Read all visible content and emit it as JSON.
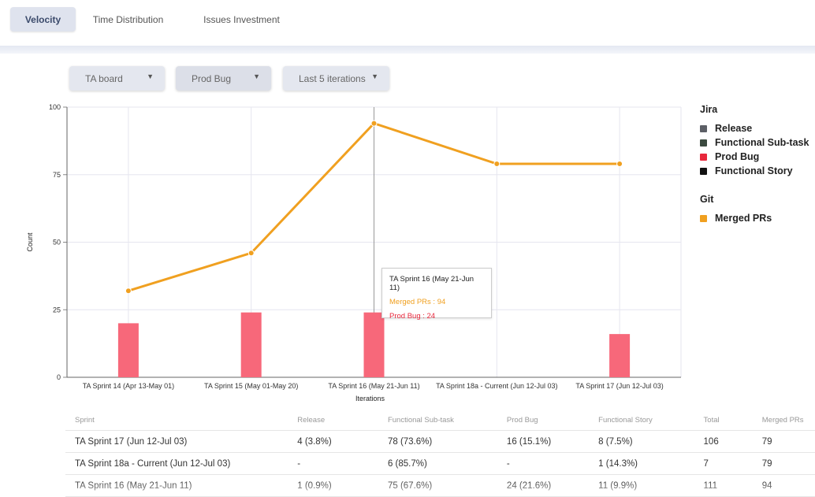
{
  "tabs": [
    {
      "label": "Velocity",
      "active": true
    },
    {
      "label": "Time Distribution",
      "active": false
    },
    {
      "label": "Issues Investment",
      "active": false
    }
  ],
  "filters": [
    {
      "value": "TA board"
    },
    {
      "value": "Prod Bug"
    },
    {
      "value": "Last 5 iterations"
    }
  ],
  "chart_data": {
    "type": "bar+line",
    "categories": [
      "TA Sprint 14 (Apr 13-May 01)",
      "TA Sprint 15 (May 01-May 20)",
      "TA Sprint 16 (May 21-Jun 11)",
      "TA Sprint 18a - Current (Jun 12-Jul 03)",
      "TA Sprint 17 (Jun 12-Jul 03)"
    ],
    "series": [
      {
        "name": "Prod Bug",
        "type": "bar",
        "color": "#f7687a",
        "values": [
          20,
          24,
          24,
          null,
          16
        ]
      },
      {
        "name": "Merged PRs",
        "type": "line",
        "color": "#f0a020",
        "values": [
          32,
          46,
          94,
          79,
          79
        ]
      }
    ],
    "xlabel": "Iterations",
    "ylabel": "Count",
    "ylim": [
      0,
      100
    ],
    "yticks": [
      0,
      25,
      50,
      75,
      100
    ],
    "grid": true
  },
  "legend": {
    "jira_title": "Jira",
    "jira_items": [
      {
        "label": "Release",
        "color": "#5c5f66"
      },
      {
        "label": "Functional Sub-task",
        "color": "#3b4a3f"
      },
      {
        "label": "Prod Bug",
        "color": "#e8283c"
      },
      {
        "label": "Functional Story",
        "color": "#111111"
      }
    ],
    "git_title": "Git",
    "git_items": [
      {
        "label": "Merged PRs",
        "color": "#f0a020"
      }
    ]
  },
  "tooltip": {
    "title": "TA Sprint 16 (May 21-Jun 11)",
    "merged_prs": "Merged PRs : 94",
    "prod_bug": "Prod Bug : 24",
    "merged_color": "#f0a020",
    "bug_color": "#e8283c"
  },
  "table": {
    "headers": [
      "Sprint",
      "Release",
      "Functional Sub-task",
      "Prod Bug",
      "Functional Story",
      "Total",
      "Merged PRs"
    ],
    "rows": [
      [
        "TA Sprint 17 (Jun 12-Jul 03)",
        "4 (3.8%)",
        "78 (73.6%)",
        "16 (15.1%)",
        "8 (7.5%)",
        "106",
        "79"
      ],
      [
        "TA Sprint 18a - Current (Jun 12-Jul 03)",
        "-",
        "6 (85.7%)",
        "-",
        "1 (14.3%)",
        "7",
        "79"
      ],
      [
        "TA Sprint 16 (May 21-Jun 11)",
        "1 (0.9%)",
        "75 (67.6%)",
        "24 (21.6%)",
        "11 (9.9%)",
        "111",
        "94"
      ]
    ]
  }
}
